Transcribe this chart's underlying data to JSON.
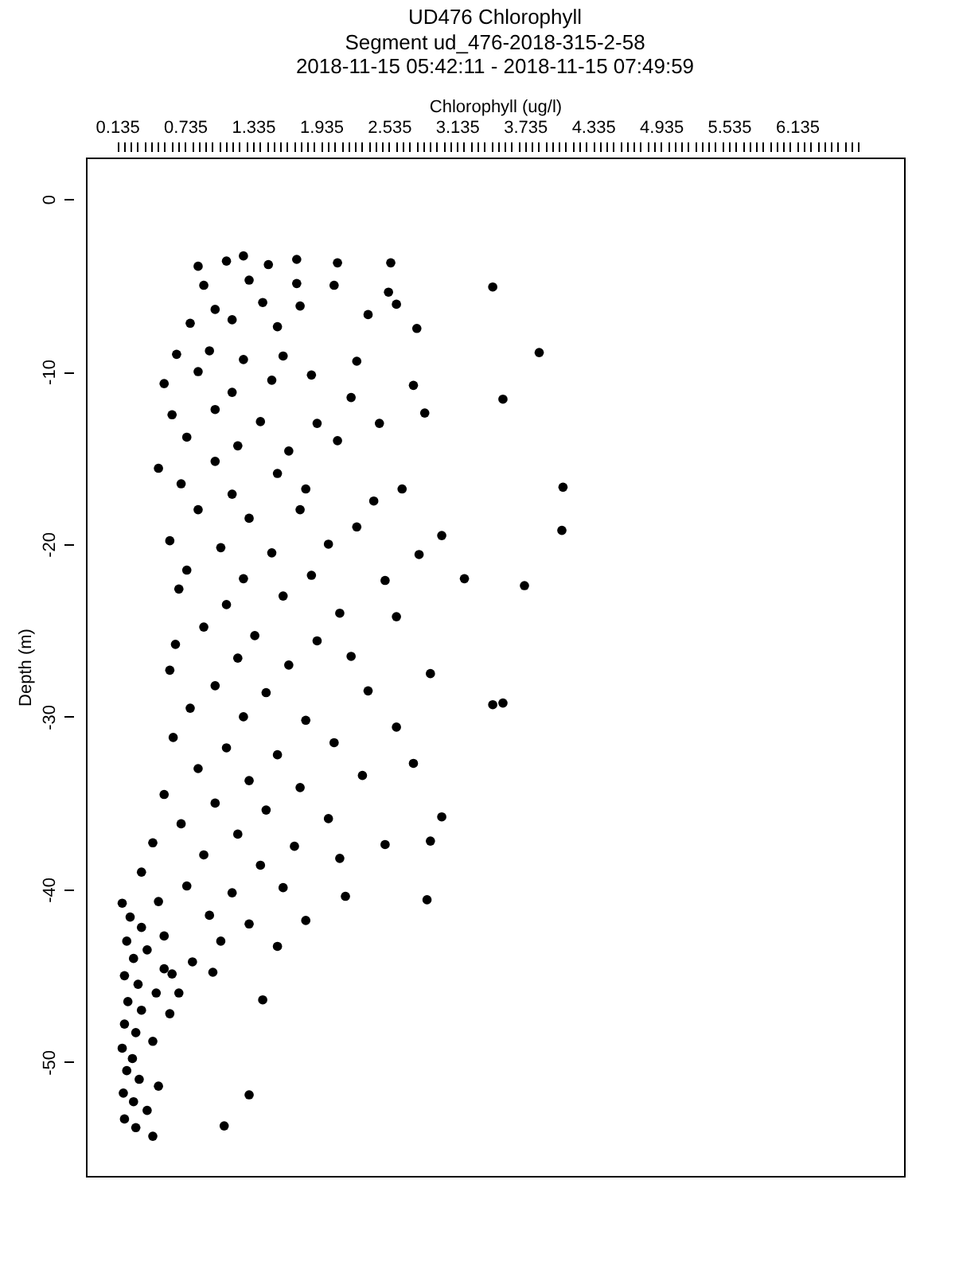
{
  "chart_data": {
    "type": "scatter",
    "title": "UD476 Chlorophyll",
    "subtitle": "Segment ud_476-2018-315-2-58\n2018-11-15 05:42:11 - 2018-11-15 07:49:59",
    "xlabel": "Chlorophyll (ug/l)",
    "ylabel": "Depth (m)",
    "xlim": [
      -0.14,
      7.08
    ],
    "ylim": [
      -56.6,
      2.4
    ],
    "xticks": [
      0.135,
      {
        "value": 0.195,
        "label": null
      },
      {
        "value": 0.255,
        "label": null
      },
      {
        "value": 0.315,
        "label": null
      },
      {
        "value": 0.375,
        "label": null
      },
      {
        "value": 0.435,
        "label": null
      },
      {
        "value": 0.495,
        "label": null
      },
      {
        "value": 0.555,
        "label": null
      },
      {
        "value": 0.615,
        "label": null
      },
      {
        "value": 0.675,
        "label": null
      },
      0.735,
      {
        "value": 0.795,
        "label": null
      },
      {
        "value": 0.855,
        "label": null
      },
      {
        "value": 0.915,
        "label": null
      },
      {
        "value": 0.975,
        "label": null
      },
      {
        "value": 1.035,
        "label": null
      },
      {
        "value": 1.095,
        "label": null
      },
      {
        "value": 1.155,
        "label": null
      },
      {
        "value": 1.215,
        "label": null
      },
      {
        "value": 1.275,
        "label": null
      },
      1.335,
      {
        "value": 1.395,
        "label": null
      },
      {
        "value": 1.455,
        "label": null
      },
      {
        "value": 1.515,
        "label": null
      },
      {
        "value": 1.575,
        "label": null
      },
      {
        "value": 1.635,
        "label": null
      },
      {
        "value": 1.695,
        "label": null
      },
      {
        "value": 1.755,
        "label": null
      },
      {
        "value": 1.815,
        "label": null
      },
      {
        "value": 1.875,
        "label": null
      },
      1.935,
      {
        "value": 1.995,
        "label": null
      },
      {
        "value": 2.055,
        "label": null
      },
      {
        "value": 2.115,
        "label": null
      },
      {
        "value": 2.175,
        "label": null
      },
      {
        "value": 2.235,
        "label": null
      },
      {
        "value": 2.295,
        "label": null
      },
      {
        "value": 2.355,
        "label": null
      },
      {
        "value": 2.415,
        "label": null
      },
      {
        "value": 2.475,
        "label": null
      },
      2.535,
      {
        "value": 2.595,
        "label": null
      },
      {
        "value": 2.655,
        "label": null
      },
      {
        "value": 2.715,
        "label": null
      },
      {
        "value": 2.775,
        "label": null
      },
      {
        "value": 2.835,
        "label": null
      },
      {
        "value": 2.895,
        "label": null
      },
      {
        "value": 2.955,
        "label": null
      },
      {
        "value": 3.015,
        "label": null
      },
      {
        "value": 3.075,
        "label": null
      },
      3.135,
      {
        "value": 3.195,
        "label": null
      },
      {
        "value": 3.255,
        "label": null
      },
      {
        "value": 3.315,
        "label": null
      },
      {
        "value": 3.375,
        "label": null
      },
      {
        "value": 3.435,
        "label": null
      },
      {
        "value": 3.495,
        "label": null
      },
      {
        "value": 3.555,
        "label": null
      },
      {
        "value": 3.615,
        "label": null
      },
      {
        "value": 3.675,
        "label": null
      },
      3.735,
      {
        "value": 3.795,
        "label": null
      },
      {
        "value": 3.855,
        "label": null
      },
      {
        "value": 3.915,
        "label": null
      },
      {
        "value": 3.975,
        "label": null
      },
      {
        "value": 4.035,
        "label": null
      },
      {
        "value": 4.095,
        "label": null
      },
      {
        "value": 4.155,
        "label": null
      },
      {
        "value": 4.215,
        "label": null
      },
      {
        "value": 4.275,
        "label": null
      },
      4.335,
      {
        "value": 4.395,
        "label": null
      },
      {
        "value": 4.455,
        "label": null
      },
      {
        "value": 4.515,
        "label": null
      },
      {
        "value": 4.575,
        "label": null
      },
      {
        "value": 4.635,
        "label": null
      },
      {
        "value": 4.695,
        "label": null
      },
      {
        "value": 4.755,
        "label": null
      },
      {
        "value": 4.815,
        "label": null
      },
      {
        "value": 4.875,
        "label": null
      },
      4.935,
      {
        "value": 4.995,
        "label": null
      },
      {
        "value": 5.055,
        "label": null
      },
      {
        "value": 5.115,
        "label": null
      },
      {
        "value": 5.175,
        "label": null
      },
      {
        "value": 5.235,
        "label": null
      },
      {
        "value": 5.295,
        "label": null
      },
      {
        "value": 5.355,
        "label": null
      },
      {
        "value": 5.415,
        "label": null
      },
      {
        "value": 5.475,
        "label": null
      },
      5.535,
      {
        "value": 5.595,
        "label": null
      },
      {
        "value": 5.655,
        "label": null
      },
      {
        "value": 5.715,
        "label": null
      },
      {
        "value": 5.775,
        "label": null
      },
      {
        "value": 5.835,
        "label": null
      },
      {
        "value": 5.895,
        "label": null
      },
      {
        "value": 5.955,
        "label": null
      },
      {
        "value": 6.015,
        "label": null
      },
      {
        "value": 6.075,
        "label": null
      },
      6.135,
      {
        "value": 6.195,
        "label": null
      },
      {
        "value": 6.255,
        "label": null
      },
      {
        "value": 6.315,
        "label": null
      },
      {
        "value": 6.375,
        "label": null
      },
      {
        "value": 6.435,
        "label": null
      },
      {
        "value": 6.495,
        "label": null
      },
      {
        "value": 6.555,
        "label": null
      },
      {
        "value": 6.615,
        "label": null
      },
      {
        "value": 6.675,
        "label": null
      }
    ],
    "yticks": [
      0,
      -10,
      -20,
      -30,
      -40,
      -50
    ],
    "grid": false,
    "legend": false,
    "marker": "circle",
    "series": [
      {
        "color": "#000000",
        "x": [
          0.85,
          1.1,
          1.25,
          1.47,
          1.72,
          2.08,
          2.55,
          0.9,
          1.3,
          1.72,
          2.05,
          2.53,
          1.0,
          1.42,
          1.75,
          2.35,
          2.6,
          0.78,
          1.15,
          1.55,
          2.78,
          3.45,
          0.66,
          0.95,
          1.25,
          1.6,
          2.25,
          3.86,
          0.55,
          0.85,
          1.15,
          1.5,
          1.85,
          2.2,
          2.75,
          0.62,
          1.0,
          1.4,
          1.9,
          2.45,
          2.85,
          3.54,
          0.75,
          1.2,
          1.65,
          2.08,
          0.5,
          1.0,
          1.55,
          2.65,
          0.7,
          1.15,
          1.8,
          2.4,
          4.07,
          0.85,
          1.3,
          1.75,
          2.25,
          3.0,
          0.6,
          1.05,
          1.5,
          2.0,
          2.8,
          4.06,
          0.75,
          1.25,
          1.85,
          2.5,
          3.2,
          0.68,
          1.1,
          1.6,
          2.1,
          3.73,
          0.9,
          1.35,
          1.9,
          2.6,
          0.65,
          1.2,
          1.65,
          2.2,
          2.9,
          0.6,
          1.0,
          1.45,
          2.35,
          3.45,
          3.54,
          0.78,
          1.25,
          1.8,
          2.6,
          0.63,
          1.1,
          1.55,
          2.05,
          2.75,
          0.85,
          1.3,
          1.75,
          2.3,
          0.55,
          1.0,
          1.45,
          2.0,
          3.0,
          0.7,
          1.2,
          1.7,
          2.5,
          2.9,
          0.45,
          0.9,
          1.4,
          2.1,
          0.35,
          0.75,
          1.15,
          1.6,
          2.15,
          2.87,
          0.5,
          0.95,
          1.3,
          1.8,
          0.55,
          1.05,
          1.55,
          0.8,
          0.98,
          0.18,
          0.25,
          0.35,
          0.22,
          0.4,
          0.28,
          0.55,
          0.2,
          0.32,
          0.48,
          0.23,
          0.35,
          0.6,
          0.2,
          0.3,
          0.45,
          0.18,
          0.27,
          0.22,
          0.33,
          0.5,
          0.19,
          0.28,
          0.4,
          0.2,
          0.3,
          0.45,
          1.08,
          1.3,
          1.42,
          0.68,
          0.62
        ],
        "values": [
          -3.9,
          -3.6,
          -3.3,
          -3.8,
          -3.5,
          -3.7,
          -3.7,
          -5.0,
          -4.7,
          -4.9,
          -5.0,
          -5.4,
          -6.4,
          -6.0,
          -6.2,
          -6.7,
          -6.1,
          -7.2,
          -7.0,
          -7.4,
          -7.5,
          -5.1,
          -9.0,
          -8.8,
          -9.3,
          -9.1,
          -9.4,
          -8.9,
          -10.7,
          -10.0,
          -11.2,
          -10.5,
          -10.2,
          -11.5,
          -10.8,
          -12.5,
          -12.2,
          -12.9,
          -13.0,
          -13.0,
          -12.4,
          -11.6,
          -13.8,
          -14.3,
          -14.6,
          -14.0,
          -15.6,
          -15.2,
          -15.9,
          -16.8,
          -16.5,
          -17.1,
          -16.8,
          -17.5,
          -16.7,
          -18.0,
          -18.5,
          -18.0,
          -19.0,
          -19.5,
          -19.8,
          -20.2,
          -20.5,
          -20.0,
          -20.6,
          -19.2,
          -21.5,
          -22.0,
          -21.8,
          -22.1,
          -22.0,
          -22.6,
          -23.5,
          -23.0,
          -24.0,
          -22.4,
          -24.8,
          -25.3,
          -25.6,
          -24.2,
          -25.8,
          -26.6,
          -27.0,
          -26.5,
          -27.5,
          -27.3,
          -28.2,
          -28.6,
          -28.5,
          -29.3,
          -29.2,
          -29.5,
          -30.0,
          -30.2,
          -30.6,
          -31.2,
          -31.8,
          -32.2,
          -31.5,
          -32.7,
          -33.0,
          -33.7,
          -34.1,
          -33.4,
          -34.5,
          -35.0,
          -35.4,
          -35.9,
          -35.8,
          -36.2,
          -36.8,
          -37.5,
          -37.4,
          -37.2,
          -37.3,
          -38.0,
          -38.6,
          -38.2,
          -39.0,
          -39.8,
          -40.2,
          -39.9,
          -40.4,
          -40.6,
          -40.7,
          -41.5,
          -42.0,
          -41.8,
          -42.7,
          -43.0,
          -43.3,
          -44.2,
          -44.8,
          -40.8,
          -41.6,
          -42.2,
          -43.0,
          -43.5,
          -44.0,
          -44.6,
          -45.0,
          -45.5,
          -46.0,
          -46.5,
          -47.0,
          -47.2,
          -47.8,
          -48.3,
          -48.8,
          -49.2,
          -49.8,
          -50.5,
          -51.0,
          -51.4,
          -51.8,
          -52.3,
          -52.8,
          -53.3,
          -53.8,
          -54.3,
          -53.7,
          -51.9,
          -46.4,
          -46.0,
          -44.9
        ]
      }
    ]
  }
}
